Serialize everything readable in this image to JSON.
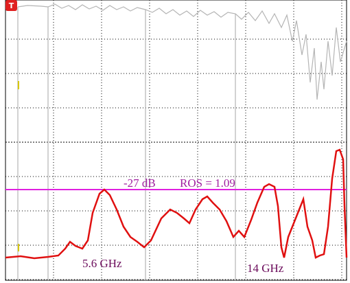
{
  "trigger_marker": "T",
  "annotations": {
    "attenuation": "-27 dB",
    "ros": "ROS = 1.09",
    "freq_1": "5.6 GHz",
    "freq_2": "14 GHz"
  }
}
